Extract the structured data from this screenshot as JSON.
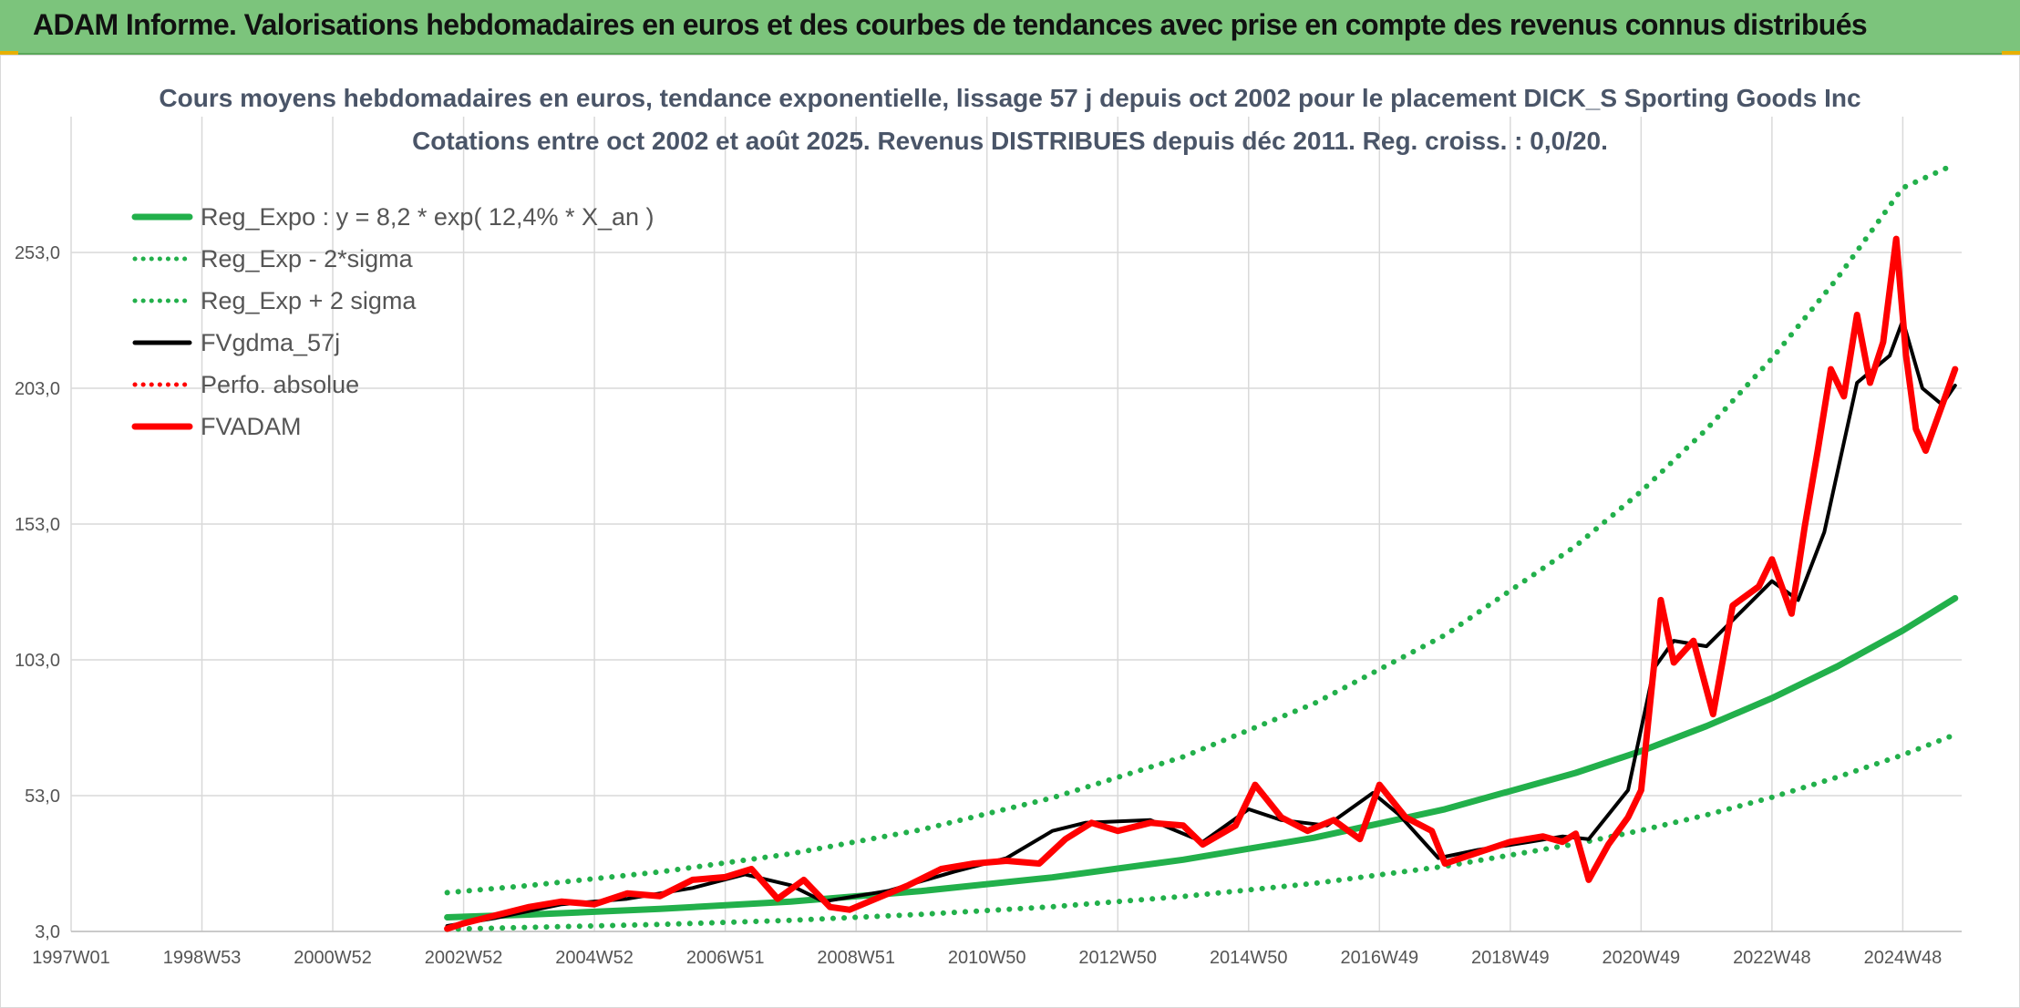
{
  "header": {
    "title": "ADAM Informe. Valorisations hebdomadaires en euros et des courbes de tendances avec prise en compte des revenus connus distribués"
  },
  "chart_data": {
    "type": "line",
    "title": "Cours moyens hebdomadaires en euros, tendance exponentielle, lissage 57 j depuis oct 2002 pour le placement DICK_S Sporting Goods Inc",
    "subtitle": "Cotations entre oct 2002 et août 2025. Revenus DISTRIBUES depuis déc 2011. Reg. croiss. : 0,0/20.",
    "xlabel": "",
    "ylabel": "",
    "ylim": [
      3,
      303
    ],
    "xlim": [
      1997.0,
      2025.9
    ],
    "grid": true,
    "legend_position": "top-left",
    "y_ticks": [
      "3,0",
      "53,0",
      "103,0",
      "153,0",
      "203,0",
      "253,0"
    ],
    "y_tick_values": [
      3,
      53,
      103,
      153,
      203,
      253
    ],
    "x_ticks": [
      "1997W01",
      "1998W53",
      "2000W52",
      "2002W52",
      "2004W52",
      "2006W51",
      "2008W51",
      "2010W50",
      "2012W50",
      "2014W50",
      "2016W49",
      "2018W49",
      "2020W49",
      "2022W48",
      "2024W48"
    ],
    "x_tick_values": [
      1997.0,
      1999.0,
      2001.0,
      2003.0,
      2005.0,
      2007.0,
      2009.0,
      2011.0,
      2013.0,
      2015.0,
      2017.0,
      2019.0,
      2021.0,
      2023.0,
      2025.0
    ],
    "series": [
      {
        "name": "Reg_Expo : y = 8,2 * exp( 12,4% *  X_an )",
        "color": "#22b04b",
        "style": "solid-thick",
        "x": [
          2002.75,
          2004,
          2006,
          2008,
          2010,
          2012,
          2014,
          2016,
          2018,
          2020,
          2021,
          2022,
          2023,
          2024,
          2025,
          2025.8
        ],
        "y": [
          8.2,
          9.2,
          11.3,
          14.0,
          17.9,
          22.9,
          29.4,
          37.5,
          48.0,
          61.4,
          69.4,
          78.6,
          88.9,
          100.6,
          113.8,
          125.7
        ]
      },
      {
        "name": "Reg_Exp - 2*sigma",
        "color": "#22b04b",
        "style": "dotted",
        "x": [
          2002.75,
          2004,
          2006,
          2008,
          2010,
          2012,
          2014,
          2016,
          2018,
          2020,
          2021,
          2022,
          2023,
          2024,
          2025,
          2025.8
        ],
        "y": [
          3.8,
          4.5,
          5.6,
          7.1,
          9.3,
          12.1,
          15.9,
          20.7,
          27.0,
          35.2,
          40.2,
          45.9,
          52.4,
          59.8,
          68.0,
          75.5
        ]
      },
      {
        "name": "Reg_Exp + 2 sigma",
        "color": "#22b04b",
        "style": "dotted",
        "x": [
          2002.75,
          2004,
          2006,
          2008,
          2010,
          2012,
          2014,
          2016,
          2018,
          2020,
          2021,
          2022,
          2023,
          2024,
          2025,
          2025.8
        ],
        "y": [
          17.3,
          19.9,
          24.9,
          31.6,
          40.5,
          52.2,
          67.3,
          86.9,
          112.1,
          144.9,
          165.0,
          187.9,
          214.0,
          243.5,
          276.8,
          285.5
        ]
      },
      {
        "name": "FVgdma_57j",
        "color": "#000000",
        "style": "solid",
        "x": [
          2002.75,
          2003.5,
          2004.5,
          2005.5,
          2006.5,
          2007.3,
          2008.0,
          2008.5,
          2009.5,
          2010.5,
          2011.3,
          2012.0,
          2012.5,
          2013.5,
          2014.3,
          2015.0,
          2015.5,
          2016.2,
          2016.9,
          2017.3,
          2017.9,
          2018.5,
          2019.3,
          2019.8,
          2020.2,
          2020.8,
          2021.2,
          2021.5,
          2022.0,
          2022.5,
          2023.0,
          2023.4,
          2023.8,
          2024.3,
          2024.8,
          2025.0,
          2025.3,
          2025.6,
          2025.8
        ],
        "y": [
          5,
          8,
          13,
          15,
          19,
          24,
          20,
          14,
          18,
          25,
          30,
          40,
          43,
          44,
          36,
          48,
          44,
          42,
          54,
          46,
          30,
          33,
          36,
          38,
          37,
          55,
          100,
          110,
          108,
          120,
          132,
          125,
          150,
          205,
          215,
          228,
          203,
          197,
          204
        ]
      },
      {
        "name": "Perfo. absolue",
        "color": "#ff0000",
        "style": "dotted",
        "x": [],
        "y": []
      },
      {
        "name": "FVADAM",
        "color": "#ff0000",
        "style": "solid-thick",
        "x": [
          2002.75,
          2003.0,
          2003.5,
          2004.0,
          2004.5,
          2005.0,
          2005.5,
          2006.0,
          2006.5,
          2007.0,
          2007.4,
          2007.8,
          2008.2,
          2008.6,
          2008.9,
          2009.3,
          2009.8,
          2010.3,
          2010.8,
          2011.3,
          2011.8,
          2012.2,
          2012.6,
          2013.0,
          2013.5,
          2014.0,
          2014.3,
          2014.8,
          2015.1,
          2015.5,
          2015.9,
          2016.3,
          2016.7,
          2017.0,
          2017.4,
          2017.8,
          2018.0,
          2018.5,
          2019.0,
          2019.5,
          2019.8,
          2020.0,
          2020.2,
          2020.5,
          2020.8,
          2021.0,
          2021.3,
          2021.5,
          2021.8,
          2022.1,
          2022.4,
          2022.8,
          2023.0,
          2023.3,
          2023.5,
          2023.7,
          2023.9,
          2024.1,
          2024.3,
          2024.5,
          2024.7,
          2024.9,
          2025.05,
          2025.2,
          2025.35,
          2025.5,
          2025.65,
          2025.8
        ],
        "y": [
          4,
          6,
          9,
          12,
          14,
          13,
          17,
          16,
          22,
          23,
          26,
          15,
          22,
          12,
          11,
          15,
          20,
          26,
          28,
          29,
          28,
          37,
          43,
          40,
          43,
          42,
          35,
          42,
          57,
          45,
          40,
          44,
          37,
          57,
          45,
          40,
          28,
          32,
          36,
          38,
          36,
          39,
          22,
          35,
          45,
          55,
          125,
          102,
          110,
          83,
          123,
          130,
          140,
          120,
          152,
          180,
          210,
          200,
          230,
          205,
          220,
          258,
          215,
          188,
          180,
          190,
          200,
          210
        ]
      }
    ]
  }
}
